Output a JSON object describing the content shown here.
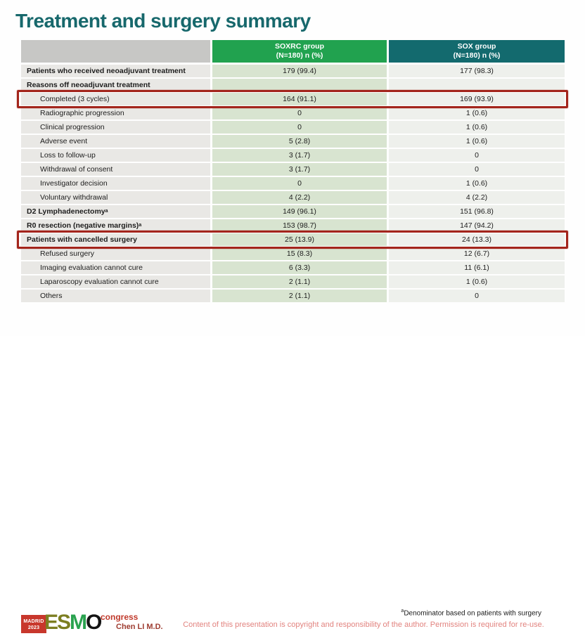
{
  "slide": {
    "title": "Treatment and surgery summary",
    "presenter": "Chen LI M.D.",
    "footnote_sup": "a",
    "footnote": "Denominator based on patients with surgery",
    "copyright": "Content of this presentation is copyright and responsibility of the author.  Permission is required for re-use."
  },
  "logo": {
    "badge_line1": "MADRID",
    "badge_line2": "2023",
    "letters": [
      "E",
      "S",
      "M",
      "O"
    ],
    "congress": "congress"
  },
  "colors": {
    "title_teal": "#17686c",
    "header_green": "#21a24f",
    "header_teal": "#136a6e",
    "label_cell_gray": "#e9e8e5",
    "soxrc_cell_green": "#d8e4d0",
    "sox_cell_gray": "#eef0ec",
    "highlight_red": "#a3251c",
    "copyright_pink": "#e2837f",
    "logo_red": "#c8372c"
  },
  "table": {
    "columns": [
      {
        "line1": "SOXRC group",
        "line2": "(N=180)  n (%)"
      },
      {
        "line1": "SOX group",
        "line2": "(N=180)  n (%)"
      }
    ],
    "rows": [
      {
        "label": "Patients who received neoadjuvant treatment",
        "sup": "",
        "v1": "179 (99.4)",
        "v2": "177 (98.3)",
        "bold": true,
        "indent": false,
        "highlight": false
      },
      {
        "label": "Reasons off neoadjuvant treatment",
        "sup": "",
        "v1": "",
        "v2": "",
        "bold": true,
        "indent": false,
        "highlight": false
      },
      {
        "label": "Completed (3 cycles)",
        "sup": "",
        "v1": "164 (91.1)",
        "v2": "169 (93.9)",
        "bold": false,
        "indent": true,
        "highlight": true
      },
      {
        "label": "Radiographic progression",
        "sup": "",
        "v1": "0",
        "v2": "1 (0.6)",
        "bold": false,
        "indent": true,
        "highlight": false
      },
      {
        "label": "Clinical progression",
        "sup": "",
        "v1": "0",
        "v2": "1 (0.6)",
        "bold": false,
        "indent": true,
        "highlight": false
      },
      {
        "label": "Adverse event",
        "sup": "",
        "v1": "5 (2.8)",
        "v2": "1 (0.6)",
        "bold": false,
        "indent": true,
        "highlight": false
      },
      {
        "label": "Loss to follow-up",
        "sup": "",
        "v1": "3 (1.7)",
        "v2": "0",
        "bold": false,
        "indent": true,
        "highlight": false
      },
      {
        "label": "Withdrawal of consent",
        "sup": "",
        "v1": "3 (1.7)",
        "v2": "0",
        "bold": false,
        "indent": true,
        "highlight": false
      },
      {
        "label": "Investigator decision",
        "sup": "",
        "v1": "0",
        "v2": "1 (0.6)",
        "bold": false,
        "indent": true,
        "highlight": false
      },
      {
        "label": "Voluntary withdrawal",
        "sup": "",
        "v1": "4 (2.2)",
        "v2": "4 (2.2)",
        "bold": false,
        "indent": true,
        "highlight": false
      },
      {
        "label": "D2 Lymphadenectomy",
        "sup": "a",
        "v1": "149 (96.1)",
        "v2": "151 (96.8)",
        "bold": true,
        "indent": false,
        "highlight": false
      },
      {
        "label": "R0 resection (negative margins)",
        "sup": "a",
        "v1": "153 (98.7)",
        "v2": "147 (94.2)",
        "bold": true,
        "indent": false,
        "highlight": false
      },
      {
        "label": "Patients with cancelled surgery",
        "sup": "",
        "v1": "25 (13.9)",
        "v2": "24 (13.3)",
        "bold": true,
        "indent": false,
        "highlight": true
      },
      {
        "label": "Refused surgery",
        "sup": "",
        "v1": "15 (8.3)",
        "v2": "12 (6.7)",
        "bold": false,
        "indent": true,
        "highlight": false
      },
      {
        "label": "Imaging evaluation cannot cure",
        "sup": "",
        "v1": "6 (3.3)",
        "v2": "11 (6.1)",
        "bold": false,
        "indent": true,
        "highlight": false
      },
      {
        "label": "Laparoscopy evaluation cannot cure",
        "sup": "",
        "v1": "2 (1.1)",
        "v2": "1 (0.6)",
        "bold": false,
        "indent": true,
        "highlight": false
      },
      {
        "label": "Others",
        "sup": "",
        "v1": "2 (1.1)",
        "v2": "0",
        "bold": false,
        "indent": true,
        "highlight": false
      }
    ]
  }
}
